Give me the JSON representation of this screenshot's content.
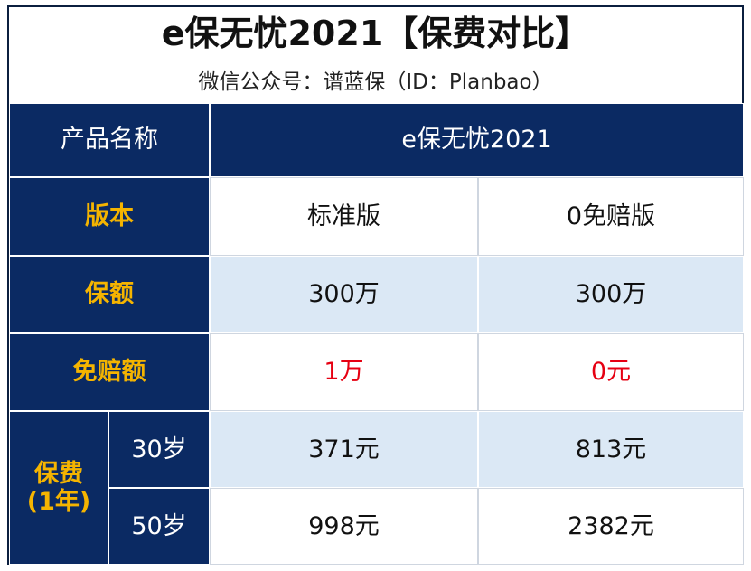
{
  "title": "e保无忧2021【保费对比】",
  "subtitle": "微信公众号：谱蓝保（ID：Planbao）",
  "table": {
    "product_header": "产品名称",
    "product_name": "e保无忧2021",
    "rows": {
      "version": {
        "label": "版本",
        "standard": "标准版",
        "zero": "0免赔版"
      },
      "coverage": {
        "label": "保额",
        "standard": "300万",
        "zero": "300万"
      },
      "deductible": {
        "label": "免赔额",
        "standard": "1万",
        "zero": "0元"
      },
      "premium": {
        "label_line1": "保费",
        "label_line2": "(1年)",
        "ages": [
          {
            "age": "30岁",
            "standard": "371元",
            "zero": "813元"
          },
          {
            "age": "50岁",
            "standard": "998元",
            "zero": "2382元"
          }
        ]
      }
    }
  },
  "colors": {
    "navy": "#0b2a63",
    "gold": "#f5b400",
    "light_blue": "#dbe8f5",
    "red": "#e60012"
  }
}
